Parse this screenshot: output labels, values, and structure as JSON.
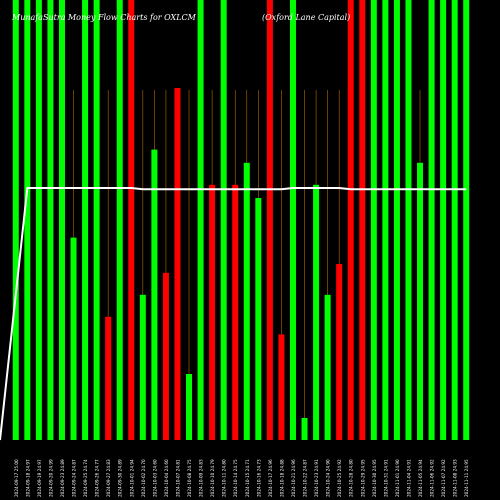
{
  "header": {
    "title": "MunafaSutra Money Flow Charts for OXLCM",
    "company": "(Oxford Lane Capital)"
  },
  "chart_data": {
    "type": "bar",
    "colors": {
      "up": "#00ff00",
      "down": "#ff0000",
      "background": "#000000",
      "price_line": "#ffffff",
      "guide": "#ff9900"
    },
    "bars": [
      {
        "date": "2024-09-17",
        "price": "25.00",
        "value": 100,
        "color": "up"
      },
      {
        "date": "2024-09-18",
        "price": "24.97",
        "value": 100,
        "color": "up"
      },
      {
        "date": "2024-09-19",
        "price": "24.97",
        "value": 100,
        "color": "up"
      },
      {
        "date": "2024-09-20",
        "price": "24.99",
        "value": 100,
        "color": "up"
      },
      {
        "date": "2024-09-23",
        "price": "24.89",
        "value": 100,
        "color": "up"
      },
      {
        "date": "2024-09-24",
        "price": "24.87",
        "value": 46,
        "color": "up"
      },
      {
        "date": "2024-09-25",
        "price": "24.74",
        "value": 100,
        "color": "up"
      },
      {
        "date": "2024-09-26",
        "price": "24.77",
        "value": 100,
        "color": "up"
      },
      {
        "date": "2024-09-27",
        "price": "24.83",
        "value": 28,
        "color": "down"
      },
      {
        "date": "2024-09-30",
        "price": "24.89",
        "value": 100,
        "color": "up"
      },
      {
        "date": "2024-10-01",
        "price": "24.94",
        "value": 100,
        "color": "down"
      },
      {
        "date": "2024-10-02",
        "price": "24.70",
        "value": 33,
        "color": "up"
      },
      {
        "date": "2024-10-03",
        "price": "24.60",
        "value": 66,
        "color": "up"
      },
      {
        "date": "2024-10-04",
        "price": "24.60",
        "value": 38,
        "color": "down"
      },
      {
        "date": "2024-10-07",
        "price": "24.81",
        "value": 80,
        "color": "down"
      },
      {
        "date": "2024-10-08",
        "price": "24.75",
        "value": 15,
        "color": "up"
      },
      {
        "date": "2024-10-09",
        "price": "24.83",
        "value": 100,
        "color": "up"
      },
      {
        "date": "2024-10-10",
        "price": "24.79",
        "value": 58,
        "color": "down"
      },
      {
        "date": "2024-10-11",
        "price": "24.80",
        "value": 100,
        "color": "up"
      },
      {
        "date": "2024-10-14",
        "price": "24.75",
        "value": 58,
        "color": "down"
      },
      {
        "date": "2024-10-15",
        "price": "24.71",
        "value": 63,
        "color": "up"
      },
      {
        "date": "2024-10-16",
        "price": "24.73",
        "value": 55,
        "color": "up"
      },
      {
        "date": "2024-10-17",
        "price": "24.96",
        "value": 100,
        "color": "down"
      },
      {
        "date": "2024-10-18",
        "price": "24.88",
        "value": 24,
        "color": "down"
      },
      {
        "date": "2024-10-21",
        "price": "24.96",
        "value": 100,
        "color": "up"
      },
      {
        "date": "2024-10-22",
        "price": "24.87",
        "value": 5,
        "color": "up"
      },
      {
        "date": "2024-10-23",
        "price": "24.91",
        "value": 58,
        "color": "up"
      },
      {
        "date": "2024-10-24",
        "price": "24.90",
        "value": 33,
        "color": "up"
      },
      {
        "date": "2024-10-25",
        "price": "24.92",
        "value": 40,
        "color": "down"
      },
      {
        "date": "2024-10-28",
        "price": "24.80",
        "value": 100,
        "color": "down"
      },
      {
        "date": "2024-10-29",
        "price": "24.95",
        "value": 100,
        "color": "down"
      },
      {
        "date": "2024-10-30",
        "price": "24.95",
        "value": 100,
        "color": "up"
      },
      {
        "date": "2024-10-31",
        "price": "24.91",
        "value": 100,
        "color": "up"
      },
      {
        "date": "2024-11-01",
        "price": "24.90",
        "value": 100,
        "color": "up"
      },
      {
        "date": "2024-11-04",
        "price": "24.91",
        "value": 100,
        "color": "up"
      },
      {
        "date": "2024-11-05",
        "price": "24.94",
        "value": 63,
        "color": "up"
      },
      {
        "date": "2024-11-06",
        "price": "24.92",
        "value": 100,
        "color": "up"
      },
      {
        "date": "2024-11-07",
        "price": "24.92",
        "value": 100,
        "color": "up"
      },
      {
        "date": "2024-11-08",
        "price": "24.93",
        "value": 100,
        "color": "up"
      },
      {
        "date": "2024-11-11",
        "price": "24.95",
        "value": 100,
        "color": "up"
      }
    ],
    "price_line": [
      0,
      100,
      100,
      100,
      100,
      100,
      100,
      100,
      100,
      100,
      100,
      99.5,
      99.5,
      99.5,
      99.5,
      99.5,
      99.5,
      99.5,
      99.5,
      99.5,
      99.5,
      99.5,
      99.5,
      99.5,
      100,
      100,
      100,
      100,
      100,
      99.5,
      99.5,
      99.5,
      99.5,
      99.5,
      99.5,
      99.5,
      99.5,
      99.5,
      99.5,
      99.5
    ]
  }
}
